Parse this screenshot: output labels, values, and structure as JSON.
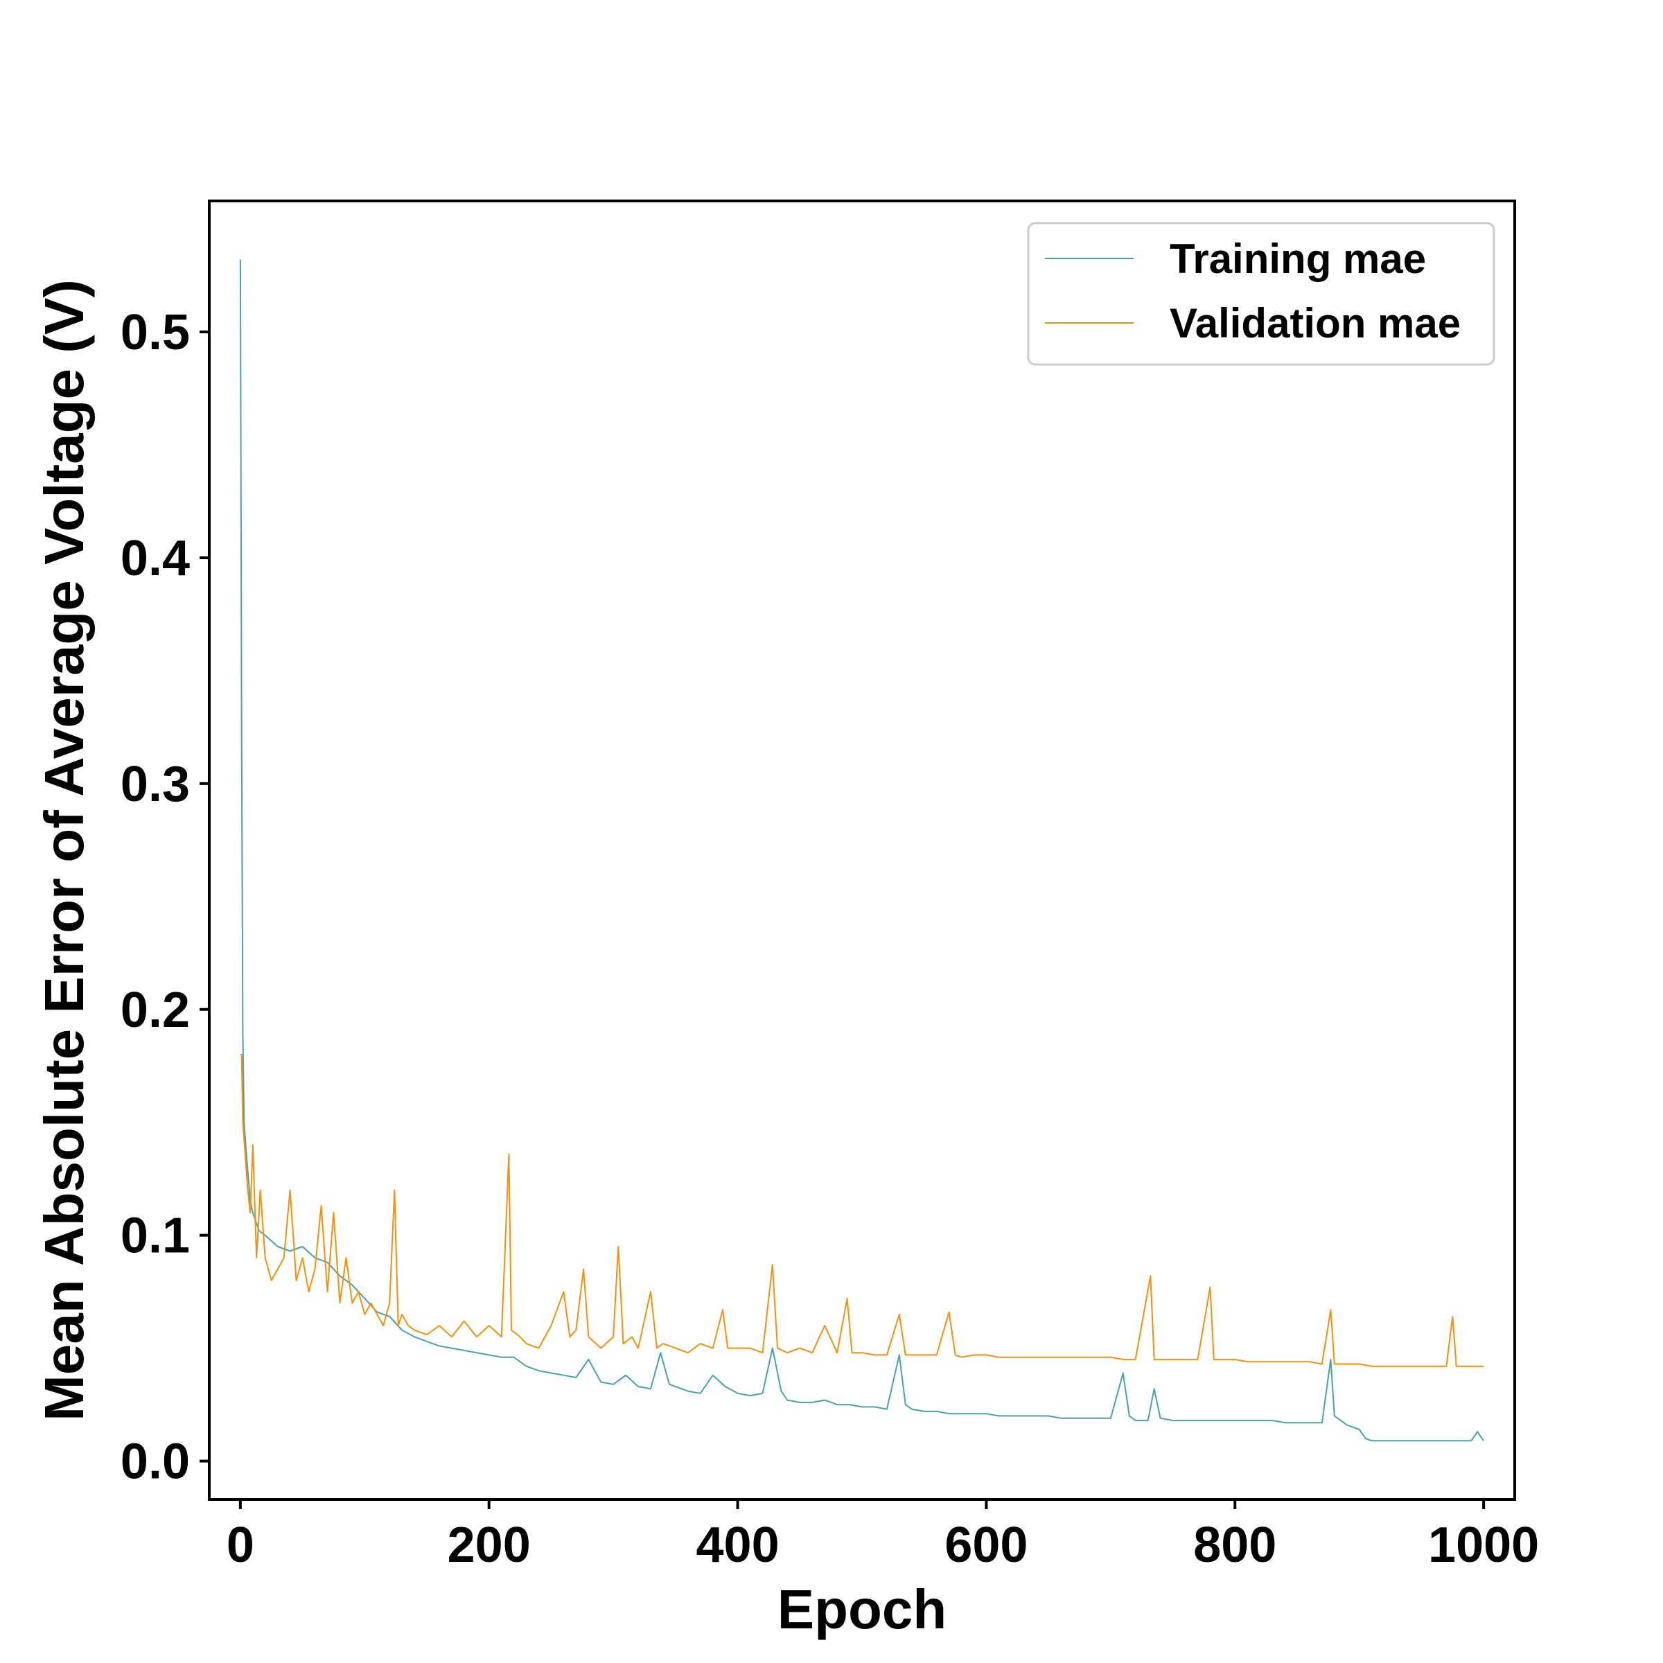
{
  "chart_data": {
    "type": "line",
    "xlabel": "Epoch",
    "ylabel": "Mean Absolute Error of Average Voltage (V)",
    "xlim": [
      -25,
      1025
    ],
    "ylim": [
      -0.017,
      0.558
    ],
    "x_ticks": [
      0,
      200,
      400,
      600,
      800,
      1000
    ],
    "x_tick_labels": [
      "0",
      "200",
      "400",
      "600",
      "800",
      "1000"
    ],
    "y_ticks": [
      0.0,
      0.1,
      0.2,
      0.3,
      0.4,
      0.5
    ],
    "y_tick_labels": [
      "0.0",
      "0.1",
      "0.2",
      "0.3",
      "0.4",
      "0.5"
    ],
    "grid": false,
    "legend_position": "top-right",
    "series": [
      {
        "name": "Training mae",
        "color": "#4aa3a3",
        "points": [
          [
            0,
            0.532
          ],
          [
            1,
            0.32
          ],
          [
            2,
            0.19
          ],
          [
            3,
            0.15
          ],
          [
            5,
            0.135
          ],
          [
            8,
            0.115
          ],
          [
            10,
            0.11
          ],
          [
            15,
            0.102
          ],
          [
            20,
            0.1
          ],
          [
            30,
            0.095
          ],
          [
            40,
            0.093
          ],
          [
            50,
            0.095
          ],
          [
            60,
            0.09
          ],
          [
            70,
            0.088
          ],
          [
            80,
            0.082
          ],
          [
            90,
            0.078
          ],
          [
            100,
            0.072
          ],
          [
            110,
            0.066
          ],
          [
            120,
            0.064
          ],
          [
            130,
            0.058
          ],
          [
            140,
            0.055
          ],
          [
            150,
            0.053
          ],
          [
            160,
            0.051
          ],
          [
            170,
            0.05
          ],
          [
            180,
            0.049
          ],
          [
            190,
            0.048
          ],
          [
            200,
            0.047
          ],
          [
            210,
            0.046
          ],
          [
            220,
            0.046
          ],
          [
            230,
            0.042
          ],
          [
            240,
            0.04
          ],
          [
            250,
            0.039
          ],
          [
            260,
            0.038
          ],
          [
            270,
            0.037
          ],
          [
            280,
            0.045
          ],
          [
            290,
            0.035
          ],
          [
            300,
            0.034
          ],
          [
            310,
            0.038
          ],
          [
            320,
            0.033
          ],
          [
            330,
            0.032
          ],
          [
            338,
            0.048
          ],
          [
            345,
            0.034
          ],
          [
            360,
            0.031
          ],
          [
            370,
            0.03
          ],
          [
            380,
            0.038
          ],
          [
            390,
            0.033
          ],
          [
            400,
            0.03
          ],
          [
            410,
            0.029
          ],
          [
            420,
            0.03
          ],
          [
            428,
            0.05
          ],
          [
            435,
            0.031
          ],
          [
            440,
            0.027
          ],
          [
            450,
            0.026
          ],
          [
            460,
            0.026
          ],
          [
            470,
            0.027
          ],
          [
            480,
            0.025
          ],
          [
            490,
            0.025
          ],
          [
            500,
            0.024
          ],
          [
            510,
            0.024
          ],
          [
            520,
            0.023
          ],
          [
            530,
            0.047
          ],
          [
            535,
            0.025
          ],
          [
            540,
            0.023
          ],
          [
            550,
            0.022
          ],
          [
            560,
            0.022
          ],
          [
            570,
            0.021
          ],
          [
            580,
            0.021
          ],
          [
            590,
            0.021
          ],
          [
            600,
            0.021
          ],
          [
            610,
            0.02
          ],
          [
            620,
            0.02
          ],
          [
            630,
            0.02
          ],
          [
            640,
            0.02
          ],
          [
            650,
            0.02
          ],
          [
            660,
            0.019
          ],
          [
            670,
            0.019
          ],
          [
            680,
            0.019
          ],
          [
            690,
            0.019
          ],
          [
            700,
            0.019
          ],
          [
            710,
            0.039
          ],
          [
            715,
            0.02
          ],
          [
            720,
            0.018
          ],
          [
            730,
            0.018
          ],
          [
            735,
            0.032
          ],
          [
            740,
            0.019
          ],
          [
            750,
            0.018
          ],
          [
            760,
            0.018
          ],
          [
            770,
            0.018
          ],
          [
            780,
            0.018
          ],
          [
            790,
            0.018
          ],
          [
            800,
            0.018
          ],
          [
            810,
            0.018
          ],
          [
            820,
            0.018
          ],
          [
            830,
            0.018
          ],
          [
            840,
            0.017
          ],
          [
            850,
            0.017
          ],
          [
            860,
            0.017
          ],
          [
            870,
            0.017
          ],
          [
            877,
            0.045
          ],
          [
            880,
            0.02
          ],
          [
            890,
            0.016
          ],
          [
            900,
            0.014
          ],
          [
            905,
            0.01
          ],
          [
            910,
            0.009
          ],
          [
            920,
            0.009
          ],
          [
            930,
            0.009
          ],
          [
            940,
            0.009
          ],
          [
            950,
            0.009
          ],
          [
            960,
            0.009
          ],
          [
            970,
            0.009
          ],
          [
            980,
            0.009
          ],
          [
            990,
            0.009
          ],
          [
            995,
            0.013
          ],
          [
            1000,
            0.009
          ]
        ]
      },
      {
        "name": "Validation mae",
        "color": "#f0920e",
        "points": [
          [
            0,
            0.18
          ],
          [
            1,
            0.18
          ],
          [
            2,
            0.15
          ],
          [
            4,
            0.135
          ],
          [
            6,
            0.12
          ],
          [
            8,
            0.11
          ],
          [
            10,
            0.14
          ],
          [
            13,
            0.09
          ],
          [
            16,
            0.12
          ],
          [
            20,
            0.09
          ],
          [
            25,
            0.08
          ],
          [
            30,
            0.085
          ],
          [
            35,
            0.09
          ],
          [
            40,
            0.12
          ],
          [
            45,
            0.08
          ],
          [
            50,
            0.09
          ],
          [
            55,
            0.075
          ],
          [
            60,
            0.085
          ],
          [
            65,
            0.113
          ],
          [
            70,
            0.075
          ],
          [
            75,
            0.11
          ],
          [
            80,
            0.07
          ],
          [
            85,
            0.09
          ],
          [
            90,
            0.07
          ],
          [
            95,
            0.075
          ],
          [
            100,
            0.065
          ],
          [
            105,
            0.07
          ],
          [
            110,
            0.065
          ],
          [
            115,
            0.06
          ],
          [
            120,
            0.07
          ],
          [
            124,
            0.12
          ],
          [
            127,
            0.06
          ],
          [
            130,
            0.065
          ],
          [
            135,
            0.06
          ],
          [
            140,
            0.058
          ],
          [
            150,
            0.056
          ],
          [
            160,
            0.06
          ],
          [
            170,
            0.055
          ],
          [
            180,
            0.062
          ],
          [
            190,
            0.055
          ],
          [
            200,
            0.06
          ],
          [
            210,
            0.055
          ],
          [
            216,
            0.136
          ],
          [
            218,
            0.058
          ],
          [
            225,
            0.055
          ],
          [
            230,
            0.052
          ],
          [
            240,
            0.05
          ],
          [
            250,
            0.06
          ],
          [
            260,
            0.075
          ],
          [
            265,
            0.055
          ],
          [
            270,
            0.058
          ],
          [
            276,
            0.085
          ],
          [
            280,
            0.055
          ],
          [
            290,
            0.05
          ],
          [
            300,
            0.055
          ],
          [
            304,
            0.095
          ],
          [
            308,
            0.052
          ],
          [
            315,
            0.055
          ],
          [
            320,
            0.05
          ],
          [
            330,
            0.075
          ],
          [
            335,
            0.05
          ],
          [
            340,
            0.052
          ],
          [
            350,
            0.05
          ],
          [
            360,
            0.048
          ],
          [
            370,
            0.052
          ],
          [
            380,
            0.05
          ],
          [
            388,
            0.067
          ],
          [
            392,
            0.05
          ],
          [
            400,
            0.05
          ],
          [
            410,
            0.05
          ],
          [
            420,
            0.048
          ],
          [
            428,
            0.087
          ],
          [
            432,
            0.05
          ],
          [
            440,
            0.048
          ],
          [
            450,
            0.05
          ],
          [
            460,
            0.048
          ],
          [
            470,
            0.06
          ],
          [
            480,
            0.048
          ],
          [
            488,
            0.072
          ],
          [
            492,
            0.048
          ],
          [
            500,
            0.048
          ],
          [
            510,
            0.047
          ],
          [
            520,
            0.047
          ],
          [
            530,
            0.065
          ],
          [
            535,
            0.047
          ],
          [
            540,
            0.047
          ],
          [
            550,
            0.047
          ],
          [
            560,
            0.047
          ],
          [
            570,
            0.066
          ],
          [
            575,
            0.047
          ],
          [
            580,
            0.046
          ],
          [
            590,
            0.047
          ],
          [
            600,
            0.047
          ],
          [
            610,
            0.046
          ],
          [
            620,
            0.046
          ],
          [
            630,
            0.046
          ],
          [
            640,
            0.046
          ],
          [
            650,
            0.046
          ],
          [
            660,
            0.046
          ],
          [
            670,
            0.046
          ],
          [
            680,
            0.046
          ],
          [
            690,
            0.046
          ],
          [
            700,
            0.046
          ],
          [
            710,
            0.045
          ],
          [
            720,
            0.045
          ],
          [
            732,
            0.082
          ],
          [
            735,
            0.045
          ],
          [
            740,
            0.045
          ],
          [
            750,
            0.045
          ],
          [
            760,
            0.045
          ],
          [
            770,
            0.045
          ],
          [
            780,
            0.077
          ],
          [
            783,
            0.045
          ],
          [
            790,
            0.045
          ],
          [
            800,
            0.045
          ],
          [
            810,
            0.044
          ],
          [
            820,
            0.044
          ],
          [
            830,
            0.044
          ],
          [
            840,
            0.044
          ],
          [
            850,
            0.044
          ],
          [
            860,
            0.044
          ],
          [
            870,
            0.043
          ],
          [
            877,
            0.067
          ],
          [
            880,
            0.043
          ],
          [
            890,
            0.043
          ],
          [
            900,
            0.043
          ],
          [
            910,
            0.042
          ],
          [
            920,
            0.042
          ],
          [
            930,
            0.042
          ],
          [
            940,
            0.042
          ],
          [
            950,
            0.042
          ],
          [
            960,
            0.042
          ],
          [
            970,
            0.042
          ],
          [
            975,
            0.064
          ],
          [
            978,
            0.042
          ],
          [
            990,
            0.042
          ],
          [
            1000,
            0.042
          ]
        ]
      }
    ]
  }
}
